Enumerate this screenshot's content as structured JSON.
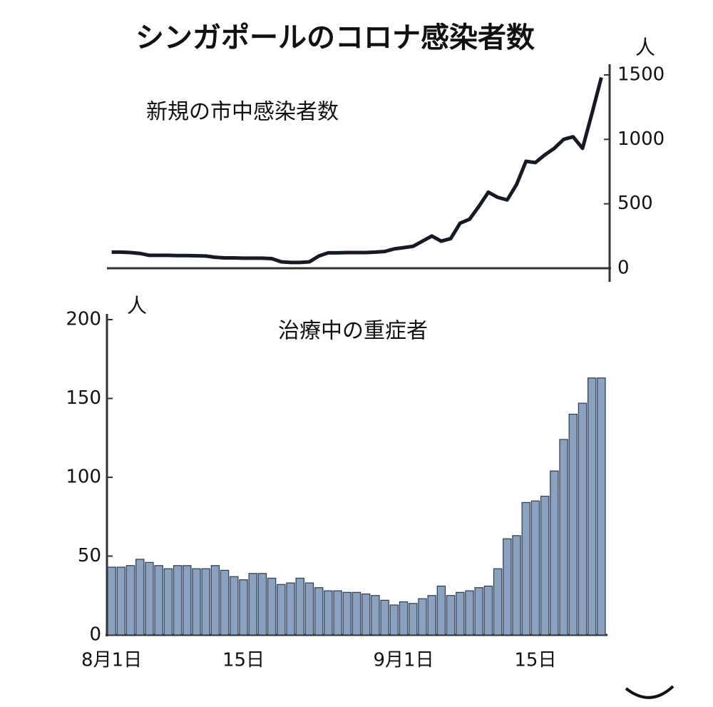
{
  "title": "シンガポールのコロナ感染者数",
  "chart_data": [
    {
      "type": "line",
      "title": "新規の市中感染者数",
      "y_unit": "人",
      "color": "#151a24",
      "values": [
        125,
        125,
        122,
        115,
        100,
        100,
        100,
        98,
        98,
        97,
        95,
        85,
        80,
        80,
        78,
        78,
        78,
        75,
        50,
        45,
        45,
        50,
        95,
        120,
        120,
        122,
        122,
        122,
        125,
        130,
        150,
        160,
        170,
        210,
        250,
        210,
        230,
        350,
        380,
        480,
        590,
        550,
        530,
        650,
        830,
        820,
        880,
        930,
        1000,
        1020,
        930,
        1200,
        1480
      ],
      "ylim": [
        0,
        1500
      ],
      "yticks": [
        0,
        500,
        1000,
        1500
      ]
    },
    {
      "type": "bar",
      "title": "治療中の重症者",
      "y_unit": "人",
      "color": "#8aa2c0",
      "categories": [
        "8月1日",
        null,
        null,
        null,
        null,
        null,
        null,
        null,
        null,
        null,
        null,
        null,
        null,
        null,
        "15日",
        null,
        null,
        null,
        null,
        null,
        null,
        null,
        null,
        null,
        null,
        null,
        null,
        null,
        null,
        null,
        null,
        "9月1日",
        null,
        null,
        null,
        null,
        null,
        null,
        null,
        null,
        null,
        null,
        null,
        null,
        null,
        "15日",
        null,
        null,
        null,
        null,
        null,
        null,
        null
      ],
      "values": [
        43,
        43,
        44,
        48,
        46,
        44,
        42,
        44,
        44,
        42,
        42,
        44,
        41,
        37,
        35,
        39,
        39,
        36,
        32,
        33,
        36,
        33,
        30,
        28,
        28,
        27,
        27,
        26,
        25,
        22,
        19,
        21,
        20,
        23,
        25,
        31,
        25,
        27,
        28,
        30,
        31,
        42,
        61,
        63,
        84,
        85,
        88,
        104,
        124,
        140,
        147,
        163,
        163
      ],
      "ylim": [
        0,
        200
      ],
      "yticks": [
        0,
        50,
        100,
        150,
        200
      ]
    }
  ]
}
